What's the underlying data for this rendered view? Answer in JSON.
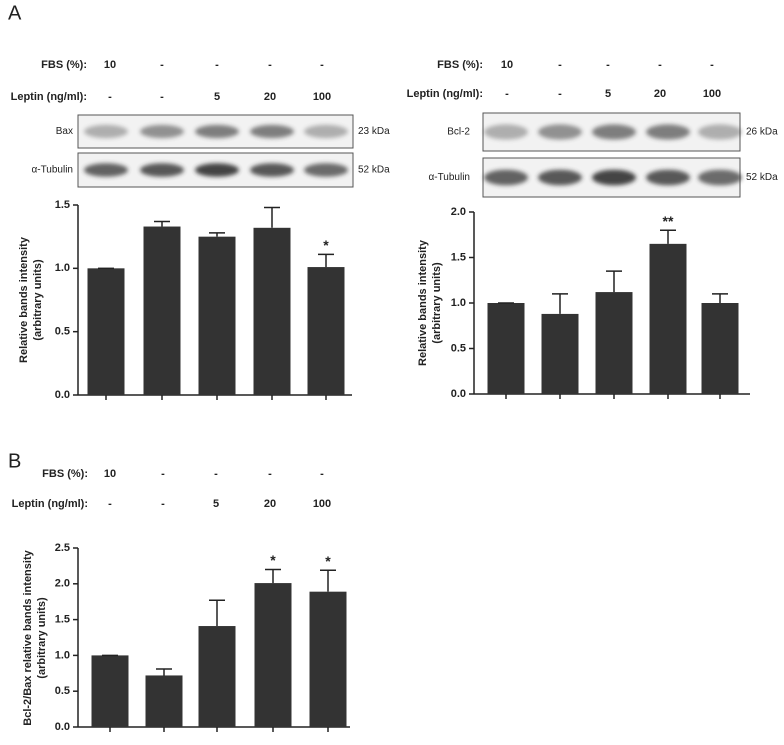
{
  "panels": [
    "A",
    "B"
  ],
  "chart_data": [
    {
      "type": "bar",
      "ylabel": [
        "Relative bands intensity",
        "(arbitrary units)"
      ],
      "rows": [
        {
          "label": "FBS (%):",
          "values": [
            "10",
            "-",
            "-",
            "-",
            "-"
          ]
        },
        {
          "label": "Leptin (ng/ml):",
          "values": [
            "-",
            "-",
            "5",
            "20",
            "100"
          ]
        }
      ],
      "blots": [
        {
          "label": "Bax",
          "size": "23 kDa"
        },
        {
          "label": "α-Tubulin",
          "size": "52 kDa"
        }
      ],
      "categories": [
        null,
        null,
        null,
        null,
        null
      ],
      "values": [
        1.0,
        1.33,
        1.25,
        1.32,
        1.01
      ],
      "errors": [
        0,
        0.04,
        0.03,
        0.16,
        0.1
      ],
      "significance": [
        null,
        null,
        null,
        null,
        "*"
      ],
      "color": "#333333",
      "ylim": [
        0,
        1.5
      ],
      "yticks": [
        {
          "value": 0,
          "label": "0.0"
        },
        {
          "value": 0.5,
          "label": "0.5"
        },
        {
          "value": 1,
          "label": "1.0"
        },
        {
          "value": 1.5,
          "label": "1.5"
        }
      ]
    },
    {
      "type": "bar",
      "ylabel": [
        "Relative bands intensity",
        "(arbitrary units)"
      ],
      "rows": [
        {
          "label": "FBS (%):",
          "values": [
            "10",
            "-",
            "-",
            "-",
            "-"
          ]
        },
        {
          "label": "Leptin (ng/ml):",
          "values": [
            "-",
            "-",
            "5",
            "20",
            "100"
          ]
        }
      ],
      "blots": [
        {
          "label": "Bcl-2",
          "size": "26 kDa"
        },
        {
          "label": "α-Tubulin",
          "size": "52 kDa"
        }
      ],
      "categories": [
        null,
        null,
        null,
        null,
        null
      ],
      "values": [
        1.0,
        0.88,
        1.12,
        1.65,
        1.0
      ],
      "errors": [
        0,
        0.22,
        0.23,
        0.15,
        0.1
      ],
      "significance": [
        null,
        null,
        null,
        "**",
        null
      ],
      "color": "#333333",
      "ylim": [
        0,
        2
      ],
      "yticks": [
        {
          "value": 0,
          "label": "0.0"
        },
        {
          "value": 0.5,
          "label": "0.5"
        },
        {
          "value": 1,
          "label": "1.0"
        },
        {
          "value": 1.5,
          "label": "1.5"
        },
        {
          "value": 2,
          "label": "2.0"
        }
      ]
    },
    {
      "type": "bar",
      "ylabel": [
        "Bcl-2/Bax relative bands intensity",
        "(arbitrary units)"
      ],
      "rows": [
        {
          "label": "FBS (%):",
          "values": [
            "10",
            "-",
            "-",
            "-",
            "-"
          ]
        },
        {
          "label": "Leptin (ng/ml):",
          "values": [
            "-",
            "-",
            "5",
            "20",
            "100"
          ]
        }
      ],
      "blots": [],
      "categories": [
        null,
        null,
        null,
        null,
        null
      ],
      "values": [
        1.0,
        0.72,
        1.41,
        2.01,
        1.89
      ],
      "errors": [
        0,
        0.09,
        0.36,
        0.19,
        0.3
      ],
      "significance": [
        null,
        null,
        null,
        "*",
        "*"
      ],
      "color": "#333333",
      "ylim": [
        0,
        2.5
      ],
      "yticks": [
        {
          "value": 0,
          "label": "0.0"
        },
        {
          "value": 0.5,
          "label": "0.5"
        },
        {
          "value": 1,
          "label": "1.0"
        },
        {
          "value": 1.5,
          "label": "1.5"
        },
        {
          "value": 2,
          "label": "2.0"
        },
        {
          "value": 2.5,
          "label": "2.5"
        }
      ]
    }
  ]
}
